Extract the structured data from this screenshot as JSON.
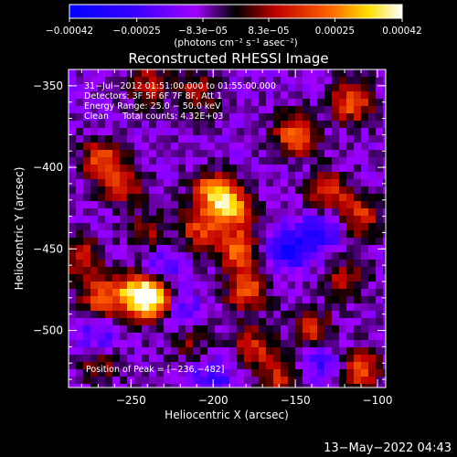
{
  "chart_data": {
    "type": "heatmap",
    "title": "Reconstructed RHESSI Image",
    "xlabel": "Heliocentric X (arcsec)",
    "ylabel": "Heliocentric Y (arcsec)",
    "xlim": [
      -288,
      -95
    ],
    "ylim": [
      -535,
      -340
    ],
    "xticks": [
      -250,
      -200,
      -150,
      -100
    ],
    "xtick_labels": [
      "−250",
      "−200",
      "−150",
      "−100"
    ],
    "yticks": [
      -350,
      -400,
      -450,
      -500
    ],
    "ytick_labels": [
      "−350",
      "−400",
      "−450",
      "−500"
    ],
    "colorbar": {
      "min": -0.00042,
      "max": 0.00042,
      "ticks": [
        -0.00042,
        -0.00025,
        -8.3e-05,
        8.3e-05,
        0.00025,
        0.00042
      ],
      "tick_labels": [
        "−0.00042",
        "−0.00025",
        "−8.3e−05",
        "8.3e−05",
        "0.00025",
        "0.00042"
      ],
      "unit_label": "(photons cm⁻² s⁻¹ asec⁻²)"
    },
    "info_lines": [
      "31−Jul−2012 01:51:00.000 to 01:55:00.000",
      "Detectors: 3F 5F 6F 7F 8F, Att 1",
      "Energy Range: 25.0 − 50.0 keV",
      "Clean     Total counts: 4.32E+03"
    ],
    "peak_label": "Position of Peak = [−236,−482]",
    "peak": [
      -236,
      -482
    ],
    "hotspots": [
      {
        "x": -236,
        "y": -482,
        "v": 1.0
      },
      {
        "x": -247,
        "y": -477,
        "v": 0.85
      },
      {
        "x": -268,
        "y": -480,
        "v": 0.7
      },
      {
        "x": -200,
        "y": -415,
        "v": 0.82
      },
      {
        "x": -188,
        "y": -425,
        "v": 0.78
      },
      {
        "x": -185,
        "y": -450,
        "v": 0.72
      },
      {
        "x": -180,
        "y": -475,
        "v": 0.7
      },
      {
        "x": -208,
        "y": -438,
        "v": 0.62
      },
      {
        "x": -150,
        "y": -380,
        "v": 0.78
      },
      {
        "x": -115,
        "y": -360,
        "v": 0.72
      },
      {
        "x": -268,
        "y": -395,
        "v": 0.62
      },
      {
        "x": -255,
        "y": -410,
        "v": 0.58
      },
      {
        "x": -130,
        "y": -415,
        "v": 0.62
      },
      {
        "x": -110,
        "y": -430,
        "v": 0.58
      },
      {
        "x": -140,
        "y": -500,
        "v": 0.55
      },
      {
        "x": -280,
        "y": -455,
        "v": 0.5
      },
      {
        "x": -240,
        "y": -350,
        "v": 0.5
      },
      {
        "x": -175,
        "y": -510,
        "v": 0.55
      },
      {
        "x": -110,
        "y": -525,
        "v": 0.65
      },
      {
        "x": -160,
        "y": -530,
        "v": 0.5
      },
      {
        "x": -120,
        "y": -470,
        "v": 0.48
      },
      {
        "x": -210,
        "y": -355,
        "v": 0.45
      },
      {
        "x": -240,
        "y": -440,
        "v": 0.42
      },
      {
        "x": -270,
        "y": -520,
        "v": 0.42
      },
      {
        "x": -215,
        "y": -505,
        "v": 0.4
      }
    ],
    "cold_spots": [
      {
        "x": -155,
        "y": -450,
        "v": -0.6
      },
      {
        "x": -135,
        "y": -440,
        "v": -0.5
      },
      {
        "x": -220,
        "y": -490,
        "v": -0.45
      },
      {
        "x": -270,
        "y": -505,
        "v": -0.4
      },
      {
        "x": -230,
        "y": -460,
        "v": -0.35
      },
      {
        "x": -200,
        "y": -530,
        "v": -0.4
      },
      {
        "x": -135,
        "y": -520,
        "v": -0.35
      }
    ]
  },
  "timestamp": "13−May−2022 04:43"
}
